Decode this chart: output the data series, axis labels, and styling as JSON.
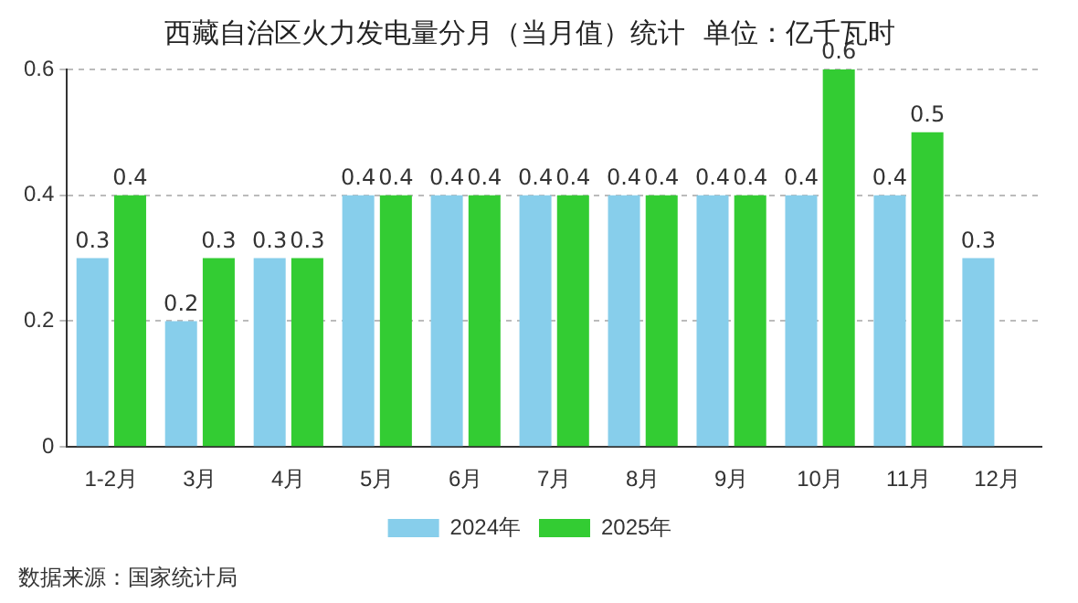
{
  "chart_data": {
    "type": "bar",
    "title": "西藏自治区火力发电量分月（当月值）统计  单位：亿千瓦时",
    "categories": [
      "1-2月",
      "3月",
      "4月",
      "5月",
      "6月",
      "7月",
      "8月",
      "9月",
      "10月",
      "11月",
      "12月"
    ],
    "series": [
      {
        "name": "2024年",
        "color": "#87ceeb",
        "values": [
          0.3,
          0.2,
          0.3,
          0.4,
          0.4,
          0.4,
          0.4,
          0.4,
          0.4,
          0.4,
          0.3
        ]
      },
      {
        "name": "2025年",
        "color": "#33cc33",
        "values": [
          0.4,
          0.3,
          0.3,
          0.4,
          0.4,
          0.4,
          0.4,
          0.4,
          0.6,
          0.5,
          null
        ]
      }
    ],
    "ylim": [
      0,
      0.6
    ],
    "yticks": [
      0,
      0.2,
      0.4,
      0.6
    ],
    "grid": "y",
    "legend": "bottom",
    "data_labels": true,
    "annotations": [
      "数据来源：国家统计局"
    ]
  }
}
